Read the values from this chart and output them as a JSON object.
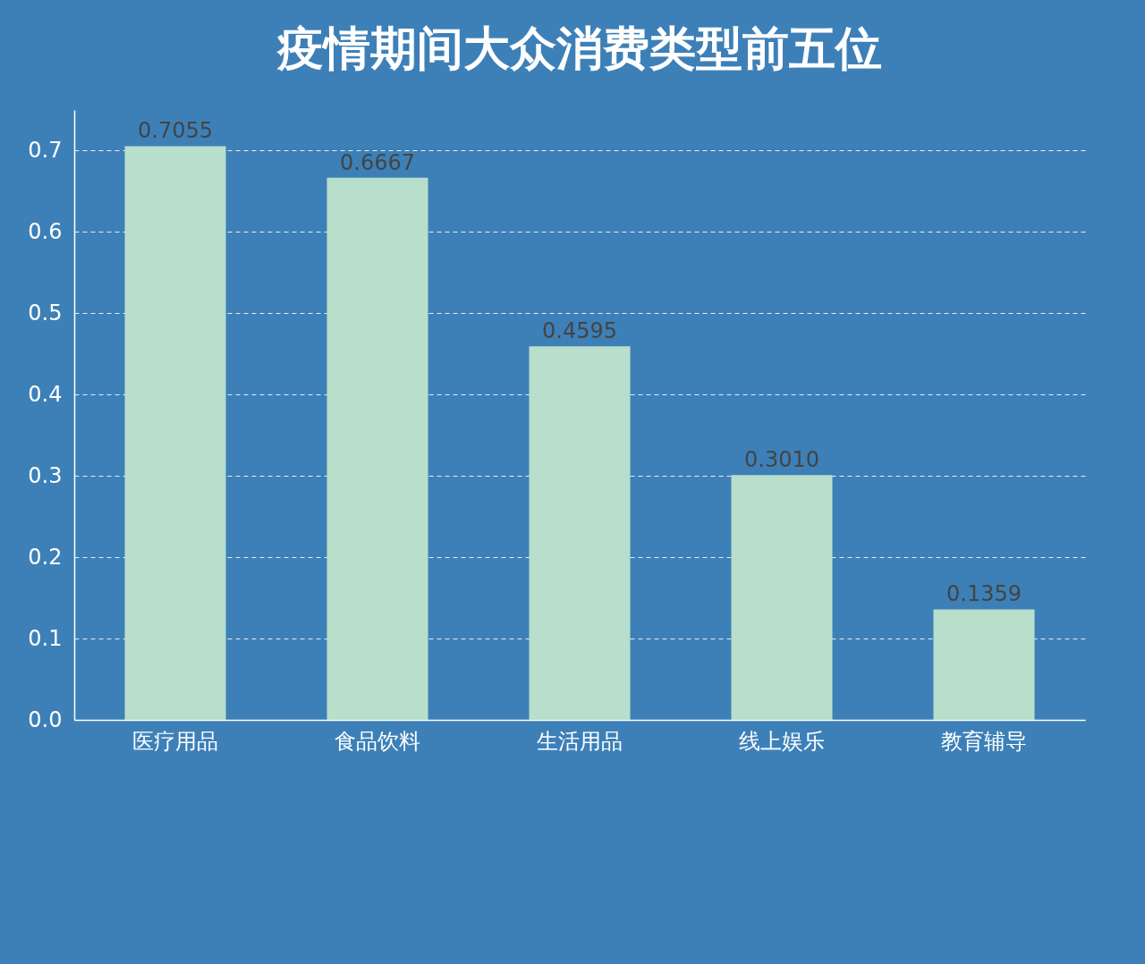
{
  "chart_data": {
    "type": "bar",
    "title": "疫情期间大众消费类型前五位",
    "categories": [
      "医疗用品",
      "食品饮料",
      "生活用品",
      "线上娱乐",
      "教育辅导"
    ],
    "values": [
      0.7055,
      0.6667,
      0.4595,
      0.301,
      0.1359
    ],
    "value_labels": [
      "0.7055",
      "0.6667",
      "0.4595",
      "0.3010",
      "0.1359"
    ],
    "color": "#b7dfcb",
    "ylim": [
      0,
      0.75
    ],
    "yticks": [
      {
        "value": 0,
        "label": "0.0"
      },
      0.1,
      0.2,
      0.3,
      0.4,
      0.5,
      0.6,
      0.7
    ],
    "grid": "y"
  }
}
